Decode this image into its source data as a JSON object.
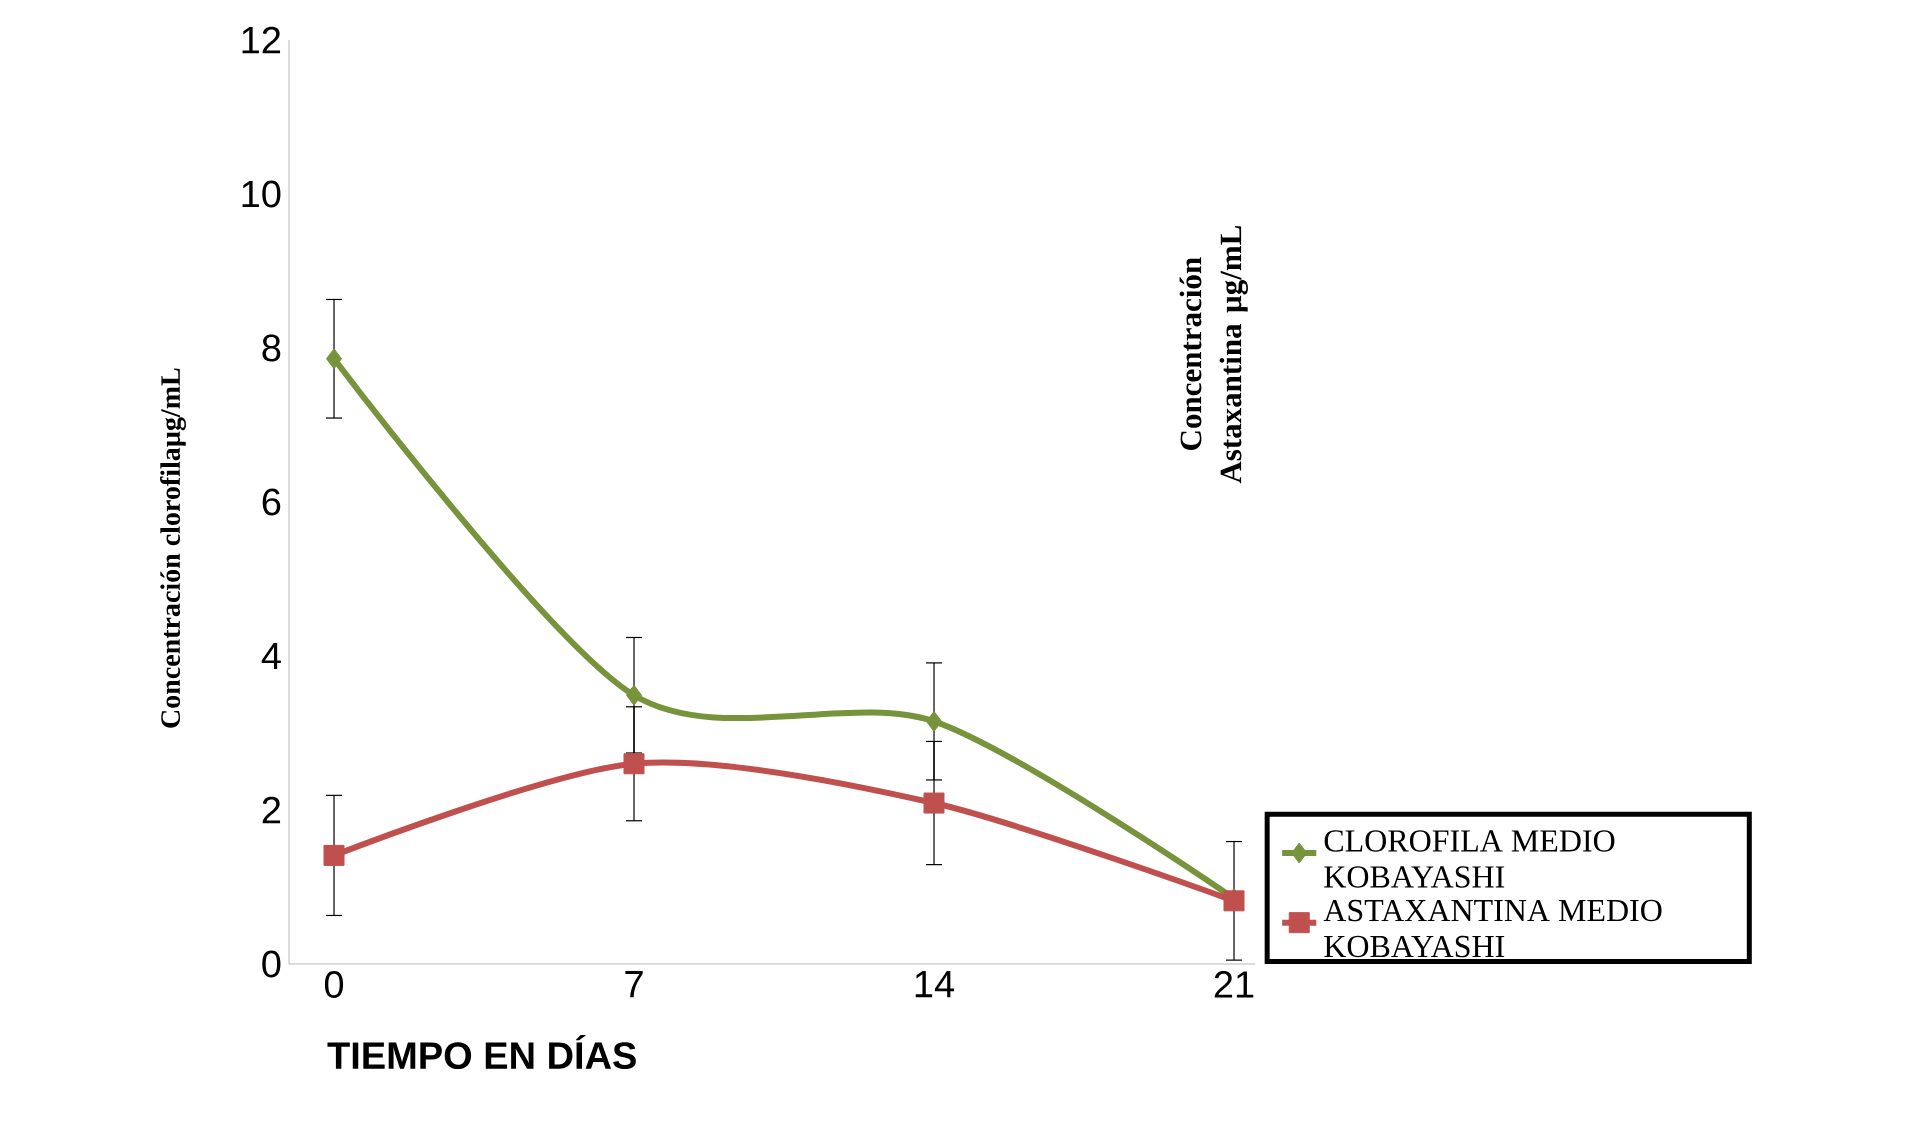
{
  "chart_data": {
    "type": "line",
    "xlabel": "TIEMPO EN DÍAS",
    "ylabel": "Concentración clorofilaµg/mL",
    "y2label": "Concentración Astaxantina µg/mL",
    "categories": [
      "0",
      "7",
      "14",
      "21"
    ],
    "ylim": [
      0,
      12
    ],
    "yticks": [
      0,
      2,
      4,
      6,
      8,
      10,
      12
    ],
    "grid": false,
    "legend": "right",
    "series": [
      {
        "name": "CLOROFILA MEDIO KOBAYASHI",
        "color": "#77933c",
        "marker": "diamond",
        "values": [
          7.86,
          3.49,
          3.15,
          0.85
        ],
        "errors": [
          0.77,
          0.75,
          0.76,
          null
        ]
      },
      {
        "name": "ASTAXANTINA MEDIO KOBAYASHI",
        "color": "#c0504d",
        "marker": "square",
        "values": [
          1.41,
          2.6,
          2.09,
          0.82
        ],
        "errors": [
          0.78,
          0.74,
          0.8,
          0.77
        ]
      }
    ]
  }
}
